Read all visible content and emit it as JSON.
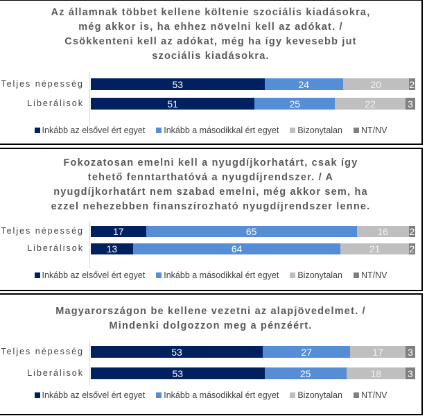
{
  "legend": [
    {
      "label": "Inkább az elsővel ért egyet",
      "color": "#002060"
    },
    {
      "label": "Inkább a másodikkal ért egyet",
      "color": "#558ED5"
    },
    {
      "label": "Bizonytalan",
      "color": "#BFBFBF"
    },
    {
      "label": "NT/NV",
      "color": "#7F7F7F"
    }
  ],
  "chart_data": [
    {
      "type": "bar",
      "orientation": "horizontal-stacked",
      "title": "Az államnak többet kellene költenie szociális kiadásokra, még akkor is, ha ehhez növelni kell az adókat. / Csökkenteni kell az adókat, még ha így kevesebb jut szociális kiadásokra.",
      "title_lines": [
        "Az államnak többet kellene költenie szociális kiadásokra,",
        "még akkor is, ha ehhez növelni kell az adókat. /",
        "Csökkenteni kell az adókat, még ha így kevesebb jut",
        "szociális kiadásokra."
      ],
      "categories": [
        "Teljes népesség",
        "Liberálisok"
      ],
      "series": [
        {
          "name": "Inkább az elsővel ért egyet",
          "values": [
            53,
            51
          ]
        },
        {
          "name": "Inkább a másodikkal ért egyet",
          "values": [
            24,
            25
          ]
        },
        {
          "name": "Bizonytalan",
          "values": [
            20,
            22
          ]
        },
        {
          "name": "NT/NV",
          "values": [
            2,
            3
          ]
        }
      ],
      "legend_position": "bottom"
    },
    {
      "type": "bar",
      "orientation": "horizontal-stacked",
      "title": "Fokozatosan emelni kell a nyugdíjkorhatárt, csak így tehető fenntarthatóvá a nyugdíjrendszer. / A nyugdíjkorhatárt nem szabad emelni, még akkor sem, ha ezzel nehezebben finanszírozható nyugdíjrendszer lenne.",
      "title_lines": [
        "Fokozatosan emelni kell a nyugdíjkorhatárt, csak így",
        "tehető fenntarthatóvá a nyugdíjrendszer. / A",
        "nyugdíjkorhatárt nem szabad emelni, még akkor sem, ha",
        "ezzel nehezebben finanszírozható nyugdíjrendszer lenne."
      ],
      "categories": [
        "Teljes népesség",
        "Liberálisok"
      ],
      "series": [
        {
          "name": "Inkább az elsővel ért egyet",
          "values": [
            17,
            13
          ]
        },
        {
          "name": "Inkább a másodikkal ért egyet",
          "values": [
            65,
            64
          ]
        },
        {
          "name": "Bizonytalan",
          "values": [
            16,
            21
          ]
        },
        {
          "name": "NT/NV",
          "values": [
            2,
            2
          ]
        }
      ],
      "legend_position": "bottom"
    },
    {
      "type": "bar",
      "orientation": "horizontal-stacked",
      "title": "Magyarországon be kellene vezetni az alapjövedelmet. / Mindenki dolgozzon meg a pénzéért.",
      "title_lines": [
        "Magyarországon be kellene vezetni az alapjövedelmet. /",
        "Mindenki dolgozzon meg a pénzéért."
      ],
      "categories": [
        "Teljes népesség",
        "Liberálisok"
      ],
      "series": [
        {
          "name": "Inkább az elsővel ért egyet",
          "values": [
            53,
            53
          ]
        },
        {
          "name": "Inkább a másodikkal ért egyet",
          "values": [
            27,
            25
          ]
        },
        {
          "name": "Bizonytalan",
          "values": [
            17,
            18
          ]
        },
        {
          "name": "NT/NV",
          "values": [
            3,
            3
          ]
        }
      ],
      "legend_position": "bottom"
    }
  ]
}
